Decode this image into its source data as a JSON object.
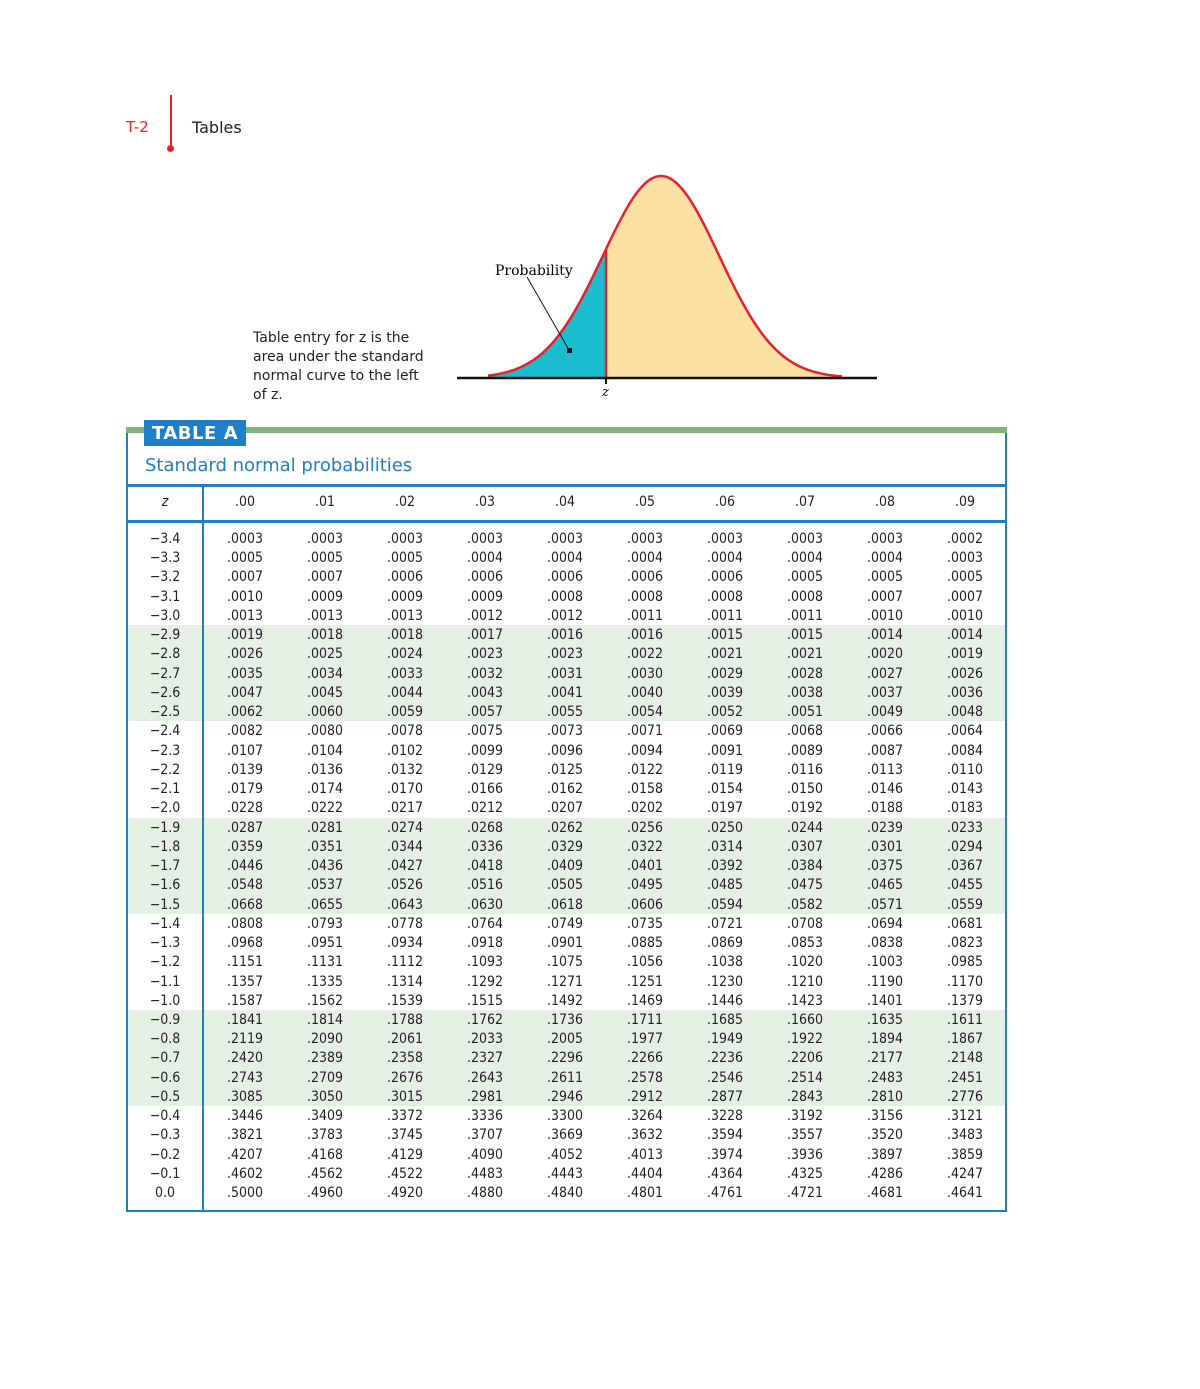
{
  "header": {
    "page_number": "T-2",
    "section": "Tables"
  },
  "figure": {
    "label": "Probability",
    "axis_label": "z",
    "caption": "Table entry for z is the area under the standard normal curve to the left of z.",
    "colors": {
      "left_area": "#1bbcd0",
      "right_area": "#fde0a3",
      "curve": "#e8202a"
    }
  },
  "table": {
    "tag": "TABLE A",
    "title": "Standard normal probabilities",
    "columns": [
      "z",
      ".00",
      ".01",
      ".02",
      ".03",
      ".04",
      ".05",
      ".06",
      ".07",
      ".08",
      ".09"
    ],
    "rows": [
      [
        "−3.4",
        ".0003",
        ".0003",
        ".0003",
        ".0003",
        ".0003",
        ".0003",
        ".0003",
        ".0003",
        ".0003",
        ".0002"
      ],
      [
        "−3.3",
        ".0005",
        ".0005",
        ".0005",
        ".0004",
        ".0004",
        ".0004",
        ".0004",
        ".0004",
        ".0004",
        ".0003"
      ],
      [
        "−3.2",
        ".0007",
        ".0007",
        ".0006",
        ".0006",
        ".0006",
        ".0006",
        ".0006",
        ".0005",
        ".0005",
        ".0005"
      ],
      [
        "−3.1",
        ".0010",
        ".0009",
        ".0009",
        ".0009",
        ".0008",
        ".0008",
        ".0008",
        ".0008",
        ".0007",
        ".0007"
      ],
      [
        "−3.0",
        ".0013",
        ".0013",
        ".0013",
        ".0012",
        ".0012",
        ".0011",
        ".0011",
        ".0011",
        ".0010",
        ".0010"
      ],
      [
        "−2.9",
        ".0019",
        ".0018",
        ".0018",
        ".0017",
        ".0016",
        ".0016",
        ".0015",
        ".0015",
        ".0014",
        ".0014"
      ],
      [
        "−2.8",
        ".0026",
        ".0025",
        ".0024",
        ".0023",
        ".0023",
        ".0022",
        ".0021",
        ".0021",
        ".0020",
        ".0019"
      ],
      [
        "−2.7",
        ".0035",
        ".0034",
        ".0033",
        ".0032",
        ".0031",
        ".0030",
        ".0029",
        ".0028",
        ".0027",
        ".0026"
      ],
      [
        "−2.6",
        ".0047",
        ".0045",
        ".0044",
        ".0043",
        ".0041",
        ".0040",
        ".0039",
        ".0038",
        ".0037",
        ".0036"
      ],
      [
        "−2.5",
        ".0062",
        ".0060",
        ".0059",
        ".0057",
        ".0055",
        ".0054",
        ".0052",
        ".0051",
        ".0049",
        ".0048"
      ],
      [
        "−2.4",
        ".0082",
        ".0080",
        ".0078",
        ".0075",
        ".0073",
        ".0071",
        ".0069",
        ".0068",
        ".0066",
        ".0064"
      ],
      [
        "−2.3",
        ".0107",
        ".0104",
        ".0102",
        ".0099",
        ".0096",
        ".0094",
        ".0091",
        ".0089",
        ".0087",
        ".0084"
      ],
      [
        "−2.2",
        ".0139",
        ".0136",
        ".0132",
        ".0129",
        ".0125",
        ".0122",
        ".0119",
        ".0116",
        ".0113",
        ".0110"
      ],
      [
        "−2.1",
        ".0179",
        ".0174",
        ".0170",
        ".0166",
        ".0162",
        ".0158",
        ".0154",
        ".0150",
        ".0146",
        ".0143"
      ],
      [
        "−2.0",
        ".0228",
        ".0222",
        ".0217",
        ".0212",
        ".0207",
        ".0202",
        ".0197",
        ".0192",
        ".0188",
        ".0183"
      ],
      [
        "−1.9",
        ".0287",
        ".0281",
        ".0274",
        ".0268",
        ".0262",
        ".0256",
        ".0250",
        ".0244",
        ".0239",
        ".0233"
      ],
      [
        "−1.8",
        ".0359",
        ".0351",
        ".0344",
        ".0336",
        ".0329",
        ".0322",
        ".0314",
        ".0307",
        ".0301",
        ".0294"
      ],
      [
        "−1.7",
        ".0446",
        ".0436",
        ".0427",
        ".0418",
        ".0409",
        ".0401",
        ".0392",
        ".0384",
        ".0375",
        ".0367"
      ],
      [
        "−1.6",
        ".0548",
        ".0537",
        ".0526",
        ".0516",
        ".0505",
        ".0495",
        ".0485",
        ".0475",
        ".0465",
        ".0455"
      ],
      [
        "−1.5",
        ".0668",
        ".0655",
        ".0643",
        ".0630",
        ".0618",
        ".0606",
        ".0594",
        ".0582",
        ".0571",
        ".0559"
      ],
      [
        "−1.4",
        ".0808",
        ".0793",
        ".0778",
        ".0764",
        ".0749",
        ".0735",
        ".0721",
        ".0708",
        ".0694",
        ".0681"
      ],
      [
        "−1.3",
        ".0968",
        ".0951",
        ".0934",
        ".0918",
        ".0901",
        ".0885",
        ".0869",
        ".0853",
        ".0838",
        ".0823"
      ],
      [
        "−1.2",
        ".1151",
        ".1131",
        ".1112",
        ".1093",
        ".1075",
        ".1056",
        ".1038",
        ".1020",
        ".1003",
        ".0985"
      ],
      [
        "−1.1",
        ".1357",
        ".1335",
        ".1314",
        ".1292",
        ".1271",
        ".1251",
        ".1230",
        ".1210",
        ".1190",
        ".1170"
      ],
      [
        "−1.0",
        ".1587",
        ".1562",
        ".1539",
        ".1515",
        ".1492",
        ".1469",
        ".1446",
        ".1423",
        ".1401",
        ".1379"
      ],
      [
        "−0.9",
        ".1841",
        ".1814",
        ".1788",
        ".1762",
        ".1736",
        ".1711",
        ".1685",
        ".1660",
        ".1635",
        ".1611"
      ],
      [
        "−0.8",
        ".2119",
        ".2090",
        ".2061",
        ".2033",
        ".2005",
        ".1977",
        ".1949",
        ".1922",
        ".1894",
        ".1867"
      ],
      [
        "−0.7",
        ".2420",
        ".2389",
        ".2358",
        ".2327",
        ".2296",
        ".2266",
        ".2236",
        ".2206",
        ".2177",
        ".2148"
      ],
      [
        "−0.6",
        ".2743",
        ".2709",
        ".2676",
        ".2643",
        ".2611",
        ".2578",
        ".2546",
        ".2514",
        ".2483",
        ".2451"
      ],
      [
        "−0.5",
        ".3085",
        ".3050",
        ".3015",
        ".2981",
        ".2946",
        ".2912",
        ".2877",
        ".2843",
        ".2810",
        ".2776"
      ],
      [
        "−0.4",
        ".3446",
        ".3409",
        ".3372",
        ".3336",
        ".3300",
        ".3264",
        ".3228",
        ".3192",
        ".3156",
        ".3121"
      ],
      [
        "−0.3",
        ".3821",
        ".3783",
        ".3745",
        ".3707",
        ".3669",
        ".3632",
        ".3594",
        ".3557",
        ".3520",
        ".3483"
      ],
      [
        "−0.2",
        ".4207",
        ".4168",
        ".4129",
        ".4090",
        ".4052",
        ".4013",
        ".3974",
        ".3936",
        ".3897",
        ".3859"
      ],
      [
        "−0.1",
        ".4602",
        ".4562",
        ".4522",
        ".4483",
        ".4443",
        ".4404",
        ".4364",
        ".4325",
        ".4286",
        ".4247"
      ],
      [
        "0.0",
        ".5000",
        ".4960",
        ".4920",
        ".4880",
        ".4840",
        ".4801",
        ".4761",
        ".4721",
        ".4681",
        ".4641"
      ]
    ],
    "shaded_row_groups": [
      [
        "−2.9",
        "−2.5"
      ],
      [
        "−1.9",
        "−1.5"
      ],
      [
        "−0.9",
        "−0.5"
      ]
    ],
    "colors": {
      "accent": "#1f7fc6",
      "bar": "#7db675",
      "shade": "#e4f0e3"
    }
  }
}
